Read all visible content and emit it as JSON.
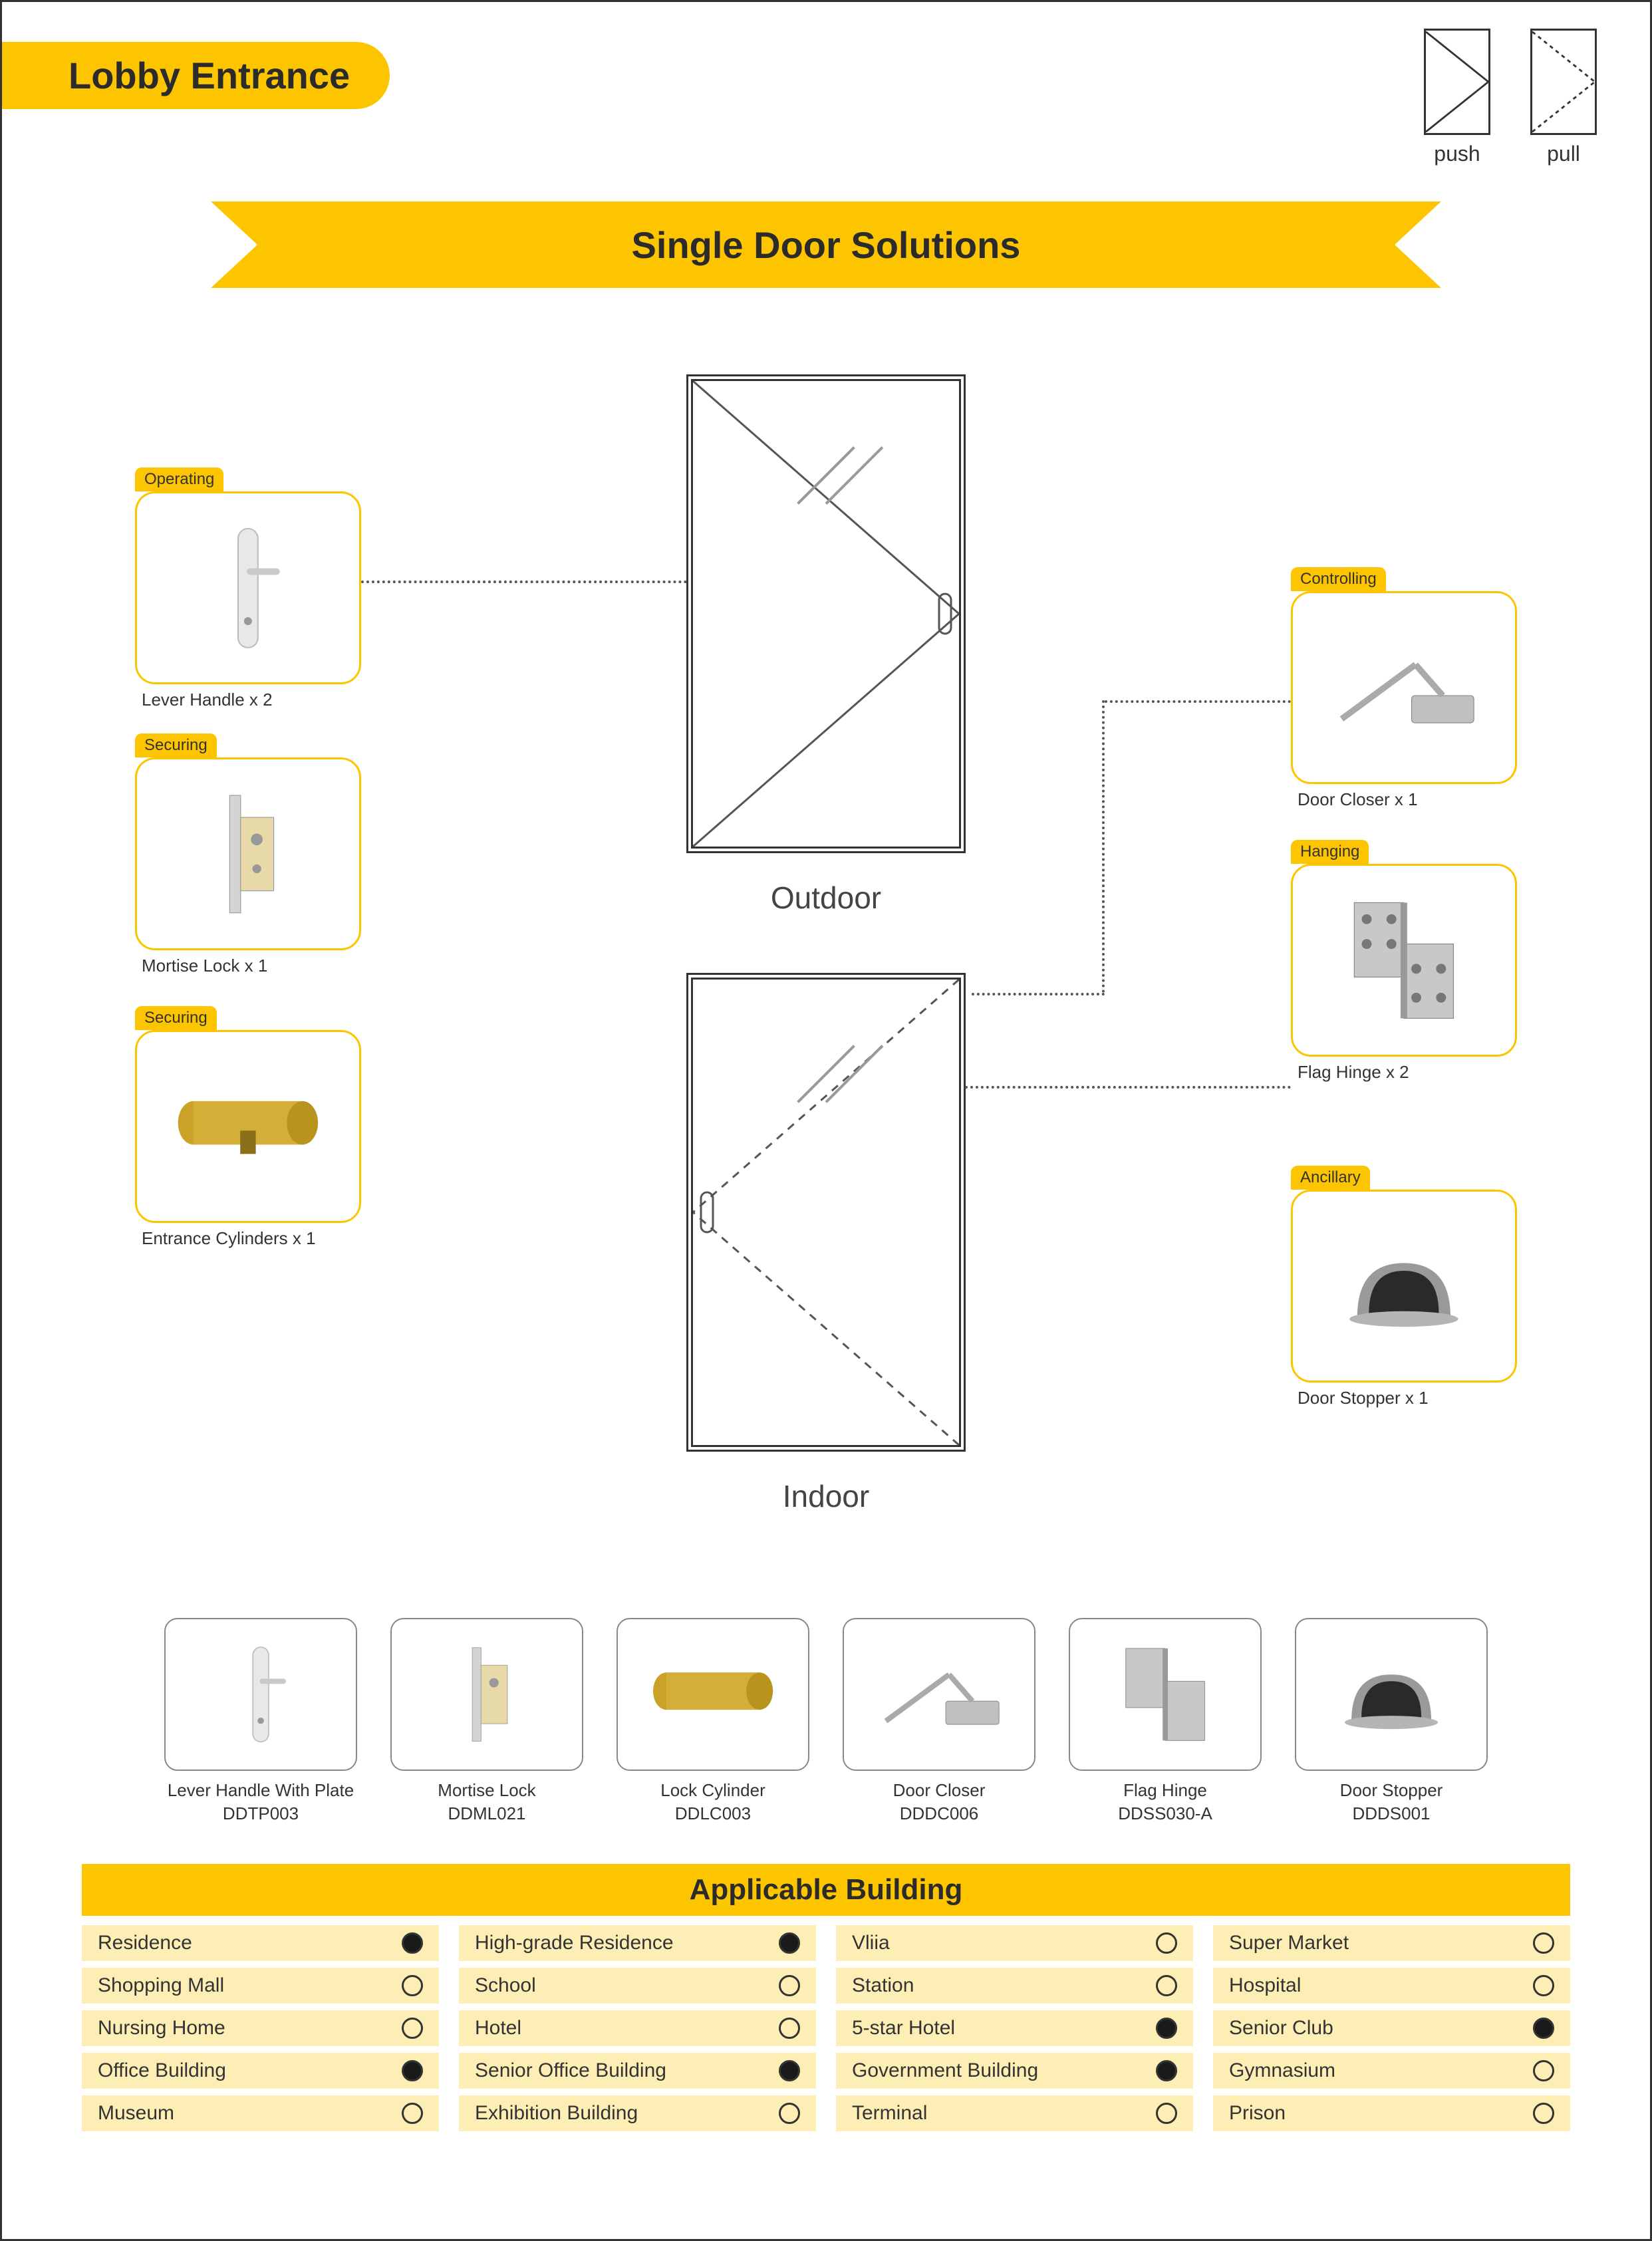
{
  "colors": {
    "accent": "#fdc500",
    "accent_light": "#fdeeb5",
    "text": "#2b2b2b",
    "border": "#333333",
    "white": "#ffffff"
  },
  "title": "Lobby Entrance",
  "banner": "Single Door Solutions",
  "pushpull": {
    "push": "push",
    "pull": "pull"
  },
  "door_labels": {
    "outdoor": "Outdoor",
    "indoor": "Indoor"
  },
  "components": {
    "lever": {
      "tag": "Operating",
      "caption": "Lever Handle x 2"
    },
    "mortise": {
      "tag": "Securing",
      "caption": "Mortise Lock x 1"
    },
    "cylinder": {
      "tag": "Securing",
      "caption": "Entrance Cylinders x 1"
    },
    "closer": {
      "tag": "Controlling",
      "caption": "Door Closer x 1"
    },
    "hinge": {
      "tag": "Hanging",
      "caption": "Flag Hinge x 2"
    },
    "stopper": {
      "tag": "Ancillary",
      "caption": "Door Stopper x 1"
    }
  },
  "products": [
    {
      "name": "Lever Handle With Plate",
      "sku": "DDTP003"
    },
    {
      "name": "Mortise Lock",
      "sku": "DDML021"
    },
    {
      "name": "Lock Cylinder",
      "sku": "DDLC003"
    },
    {
      "name": "Door Closer",
      "sku": "DDDC006"
    },
    {
      "name": "Flag Hinge",
      "sku": "DDSS030-A"
    },
    {
      "name": "Door Stopper",
      "sku": "DDDS001"
    }
  ],
  "applicable": {
    "header": "Applicable Building",
    "columns": 4,
    "row_bg": "#fdeeb5",
    "cells": [
      {
        "label": "Residence",
        "filled": true
      },
      {
        "label": "High-grade Residence",
        "filled": true
      },
      {
        "label": "Vliia",
        "filled": false
      },
      {
        "label": "Super Market",
        "filled": false
      },
      {
        "label": "Shopping Mall",
        "filled": false
      },
      {
        "label": "School",
        "filled": false
      },
      {
        "label": "Station",
        "filled": false
      },
      {
        "label": "Hospital",
        "filled": false
      },
      {
        "label": "Nursing Home",
        "filled": false
      },
      {
        "label": "Hotel",
        "filled": false
      },
      {
        "label": "5-star Hotel",
        "filled": true
      },
      {
        "label": "Senior Club",
        "filled": true
      },
      {
        "label": "Office Building",
        "filled": true
      },
      {
        "label": "Senior Office Building",
        "filled": true
      },
      {
        "label": "Government Building",
        "filled": true
      },
      {
        "label": "Gymnasium",
        "filled": false
      },
      {
        "label": "Museum",
        "filled": false
      },
      {
        "label": "Exhibition Building",
        "filled": false
      },
      {
        "label": "Terminal",
        "filled": false
      },
      {
        "label": "Prison",
        "filled": false
      }
    ]
  }
}
